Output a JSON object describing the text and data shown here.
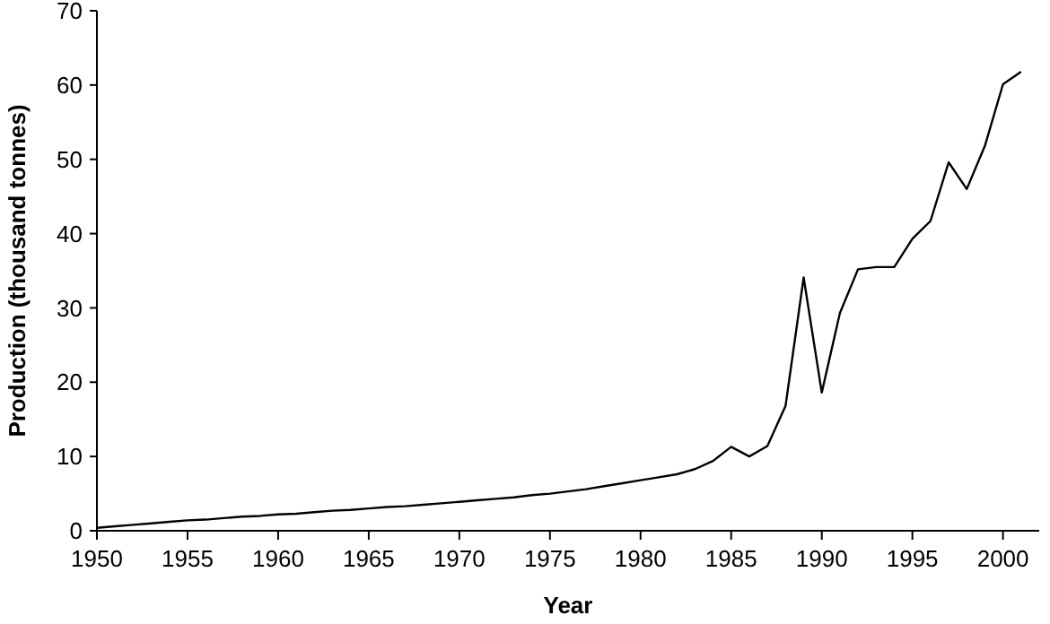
{
  "chart_data": {
    "type": "line",
    "xlabel": "Year",
    "ylabel": "Production (thousand tonnes)",
    "x": [
      1950,
      1951,
      1952,
      1953,
      1954,
      1955,
      1956,
      1957,
      1958,
      1959,
      1960,
      1961,
      1962,
      1963,
      1964,
      1965,
      1966,
      1967,
      1968,
      1969,
      1970,
      1971,
      1972,
      1973,
      1974,
      1975,
      1976,
      1977,
      1978,
      1979,
      1980,
      1981,
      1982,
      1983,
      1984,
      1985,
      1986,
      1987,
      1988,
      1989,
      1990,
      1991,
      1992,
      1993,
      1994,
      1995,
      1996,
      1997,
      1998,
      1999,
      2000,
      2001
    ],
    "series": [
      {
        "color": "#000000",
        "values": [
          0.4,
          0.6,
          0.8,
          1.0,
          1.2,
          1.4,
          1.5,
          1.7,
          1.9,
          2.0,
          2.2,
          2.3,
          2.5,
          2.7,
          2.8,
          3.0,
          3.2,
          3.3,
          3.5,
          3.7,
          3.9,
          4.1,
          4.3,
          4.5,
          4.8,
          5.0,
          5.3,
          5.6,
          6.0,
          6.4,
          6.8,
          7.2,
          7.6,
          8.3,
          9.4,
          11.3,
          10.0,
          11.4,
          16.8,
          34.1,
          18.6,
          29.3,
          35.2,
          35.5,
          35.5,
          39.3,
          41.7,
          49.6,
          46.0,
          51.8,
          60.1,
          61.8
        ]
      }
    ],
    "xlim": [
      1950,
      2002
    ],
    "xticks": [
      1950,
      1955,
      1960,
      1965,
      1970,
      1975,
      1980,
      1985,
      1990,
      1995,
      2000
    ],
    "ylim": [
      0,
      70
    ],
    "yticks": [
      0,
      10,
      20,
      30,
      40,
      50,
      60,
      70
    ],
    "grid": false,
    "marker": "none",
    "line_style": "solid"
  }
}
